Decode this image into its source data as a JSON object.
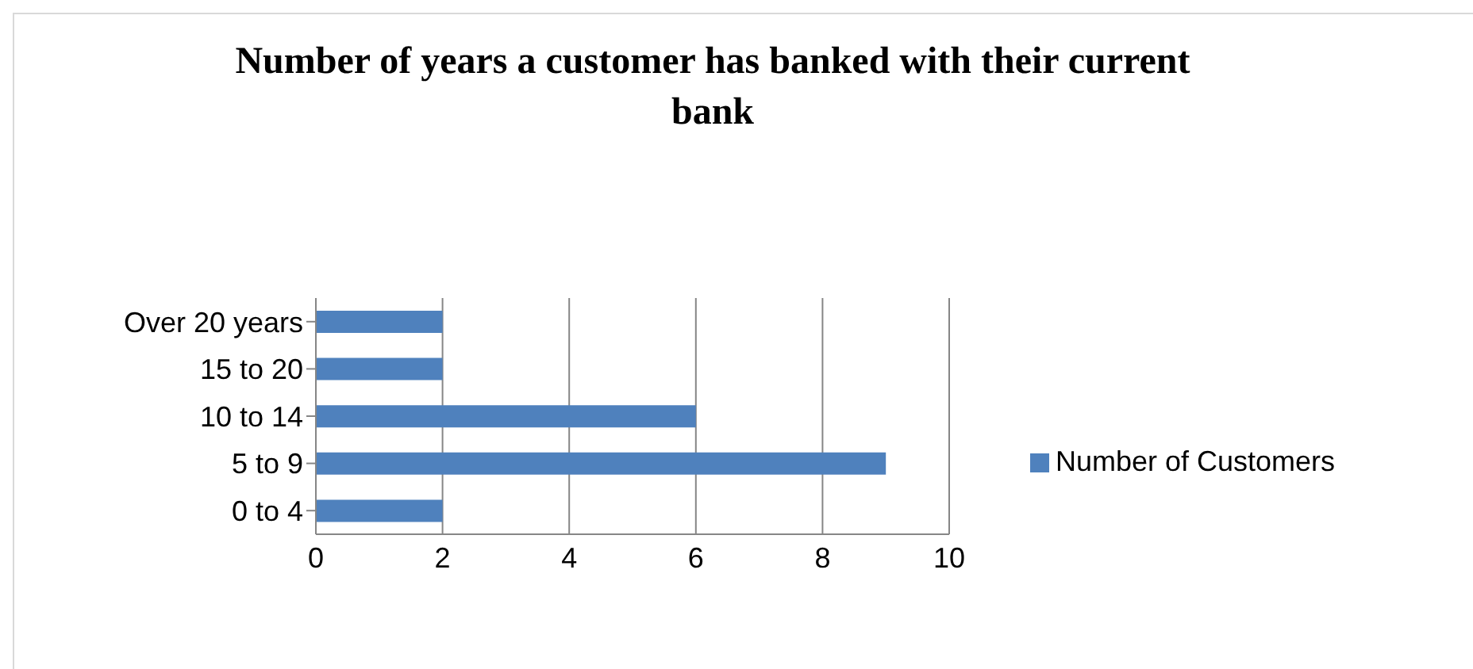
{
  "chart_data": {
    "type": "bar",
    "orientation": "horizontal",
    "title": "Number of years a customer has banked with their current bank",
    "categories": [
      "Over 20 years",
      "15 to 20",
      "10 to 14",
      "5 to 9",
      "0 to 4"
    ],
    "series": [
      {
        "name": "Number of Customers",
        "color": "#4f81bd",
        "values": [
          2,
          2,
          6,
          9,
          2
        ]
      }
    ],
    "xlim": [
      0,
      10
    ],
    "xticks": [
      0,
      2,
      4,
      6,
      8,
      10
    ],
    "grid": "x",
    "legend": "right"
  }
}
